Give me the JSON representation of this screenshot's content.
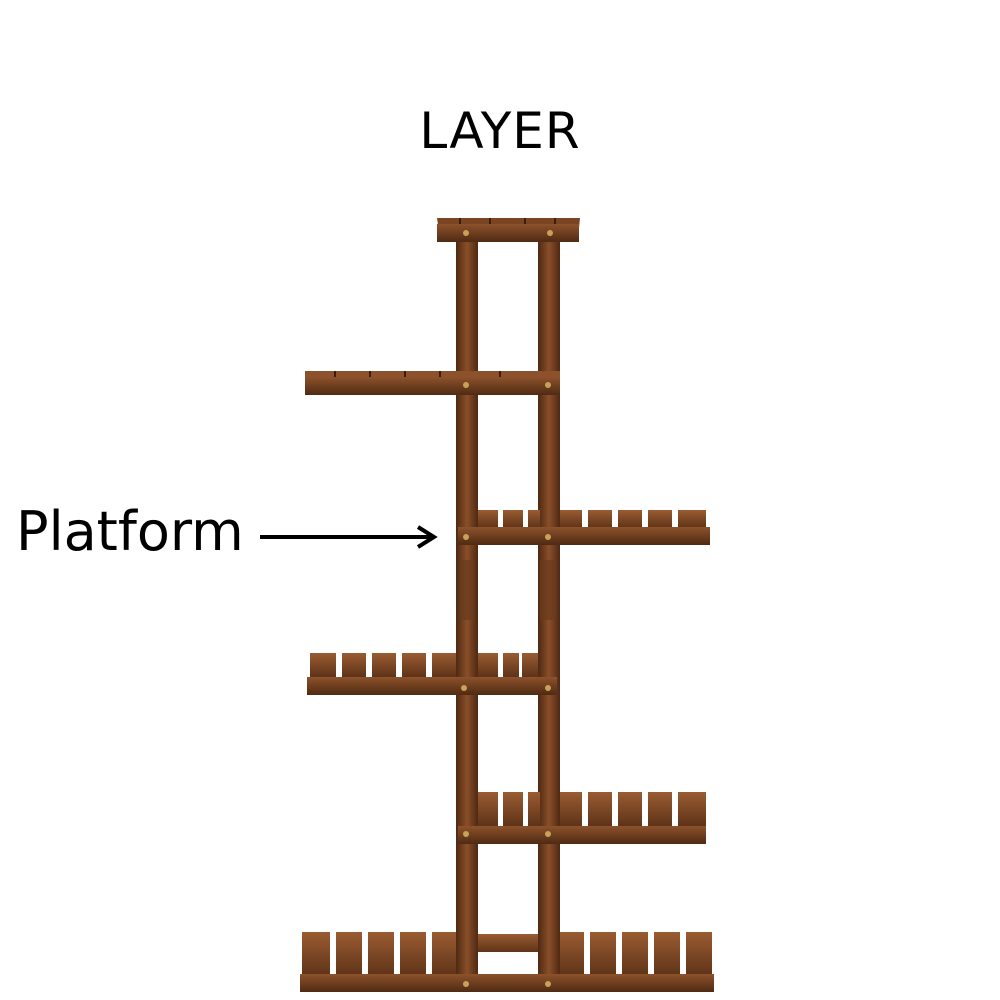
{
  "title": "LAYER",
  "callout": {
    "label": "Platform",
    "arrow_icon": "right-arrow-icon"
  },
  "colors": {
    "wood_dark": "#5a3016",
    "wood_mid": "#7b4524",
    "wood_light": "#9c5d32",
    "screw": "#c9a25a"
  }
}
